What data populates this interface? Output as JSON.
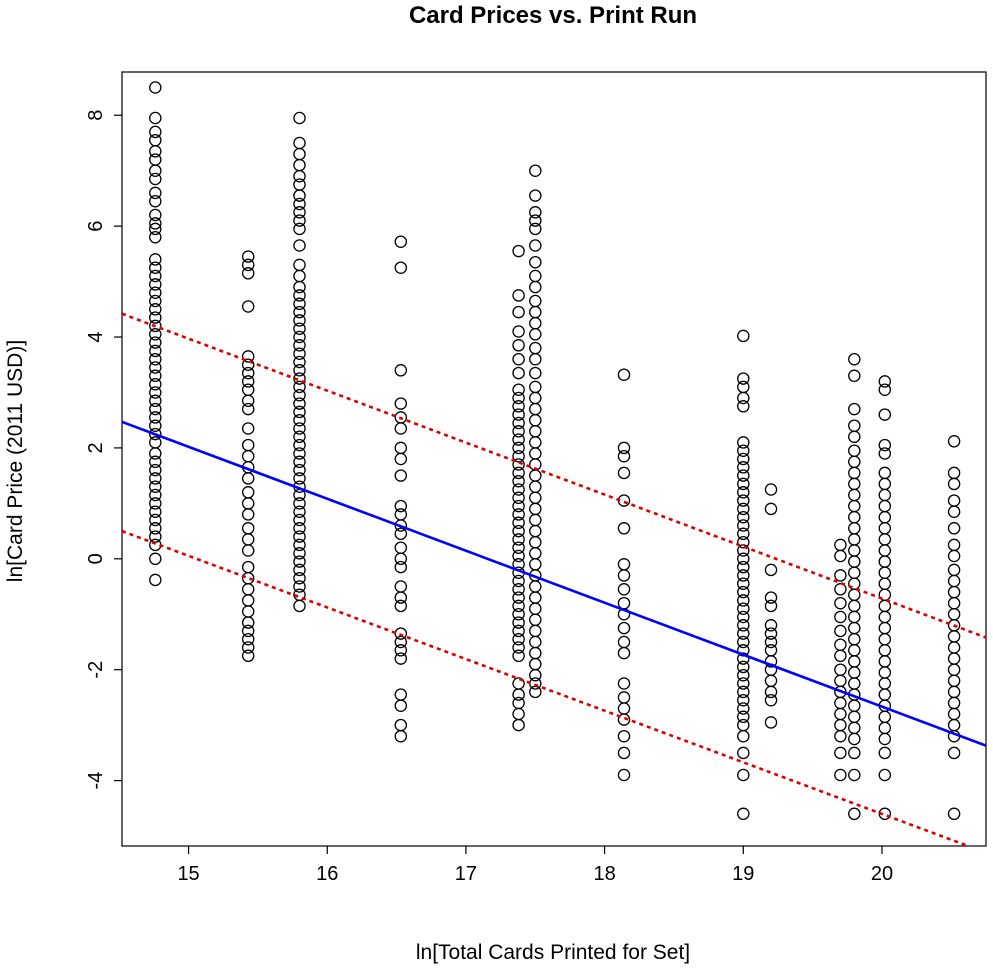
{
  "chart_data": {
    "type": "scatter",
    "title": "Card Prices vs. Print Run",
    "xlabel": "ln[Total Cards Printed for Set]",
    "ylabel": "ln[Card Price (2011 USD)]",
    "xlim": [
      14.52,
      20.75
    ],
    "ylim": [
      -5.18,
      8.78
    ],
    "xticks": [
      15,
      16,
      17,
      18,
      19,
      20
    ],
    "yticks": [
      -4,
      -2,
      0,
      2,
      4,
      6,
      8
    ],
    "grid": false,
    "legend": "none",
    "point_style": "open-circle",
    "colors": {
      "points": "#000000",
      "fit_line": "#0000ff",
      "band_lines": "#dd0000"
    },
    "lines": [
      {
        "style": "solid",
        "color": "#0000ff",
        "points": [
          [
            14.52,
            2.47
          ],
          [
            20.75,
            -3.37
          ]
        ]
      },
      {
        "style": "dotted",
        "color": "#dd0000",
        "points": [
          [
            14.52,
            4.42
          ],
          [
            20.75,
            -1.42
          ]
        ]
      },
      {
        "style": "dotted",
        "color": "#dd0000",
        "points": [
          [
            14.52,
            0.5
          ],
          [
            20.75,
            -5.3
          ]
        ]
      }
    ],
    "columns": [
      {
        "x": 14.76,
        "y": [
          8.5,
          7.95,
          7.7,
          7.55,
          7.35,
          7.2,
          7.0,
          6.85,
          6.6,
          6.45,
          6.2,
          6.05,
          5.95,
          5.8,
          5.4,
          5.25,
          5.1,
          4.95,
          4.8,
          4.65,
          4.5,
          4.35,
          4.2,
          4.05,
          3.9,
          3.75,
          3.6,
          3.45,
          3.3,
          3.15,
          3.0,
          2.85,
          2.7,
          2.55,
          2.4,
          2.25,
          2.1,
          1.9,
          1.75,
          1.6,
          1.45,
          1.3,
          1.15,
          1.0,
          0.85,
          0.7,
          0.55,
          0.4,
          0.25,
          0.0,
          -0.38
        ]
      },
      {
        "x": 15.43,
        "y": [
          5.45,
          5.3,
          5.15,
          4.55,
          3.65,
          3.5,
          3.35,
          3.2,
          3.05,
          2.85,
          2.7,
          2.35,
          2.05,
          1.85,
          1.65,
          1.45,
          1.2,
          1.0,
          0.8,
          0.55,
          0.35,
          0.15,
          -0.15,
          -0.35,
          -0.55,
          -0.75,
          -0.95,
          -1.15,
          -1.3,
          -1.45,
          -1.6,
          -1.75
        ]
      },
      {
        "x": 15.8,
        "y": [
          7.95,
          7.5,
          7.3,
          7.1,
          6.9,
          6.75,
          6.55,
          6.4,
          6.25,
          6.1,
          5.95,
          5.65,
          5.3,
          5.1,
          4.9,
          4.75,
          4.6,
          4.45,
          4.3,
          4.15,
          4.0,
          3.85,
          3.7,
          3.55,
          3.4,
          3.25,
          3.1,
          2.95,
          2.8,
          2.65,
          2.5,
          2.35,
          2.2,
          2.05,
          1.9,
          1.75,
          1.6,
          1.45,
          1.3,
          1.15,
          1.0,
          0.85,
          0.7,
          0.55,
          0.4,
          0.25,
          0.1,
          -0.05,
          -0.2,
          -0.35,
          -0.5,
          -0.65,
          -0.85
        ]
      },
      {
        "x": 16.53,
        "y": [
          5.72,
          5.25,
          3.4,
          2.8,
          2.55,
          2.35,
          2.0,
          1.8,
          1.5,
          0.95,
          0.8,
          0.6,
          0.45,
          0.2,
          0.0,
          -0.15,
          -0.5,
          -0.7,
          -0.85,
          -1.35,
          -1.5,
          -1.65,
          -1.8,
          -2.45,
          -2.65,
          -3.0,
          -3.2
        ]
      },
      {
        "x": 17.38,
        "y": [
          5.55,
          4.75,
          4.45,
          4.1,
          3.85,
          3.6,
          3.35,
          3.05,
          2.9,
          2.75,
          2.6,
          2.45,
          2.3,
          2.15,
          2.0,
          1.85,
          1.7,
          1.55,
          1.4,
          1.25,
          1.1,
          0.95,
          0.8,
          0.65,
          0.5,
          0.35,
          0.2,
          0.05,
          -0.1,
          -0.25,
          -0.4,
          -0.55,
          -0.7,
          -0.85,
          -1.0,
          -1.15,
          -1.3,
          -1.45,
          -1.6,
          -1.75,
          -2.25,
          -2.45,
          -2.6,
          -2.8,
          -3.0
        ]
      },
      {
        "x": 17.5,
        "y": [
          7.0,
          6.55,
          6.25,
          6.1,
          5.95,
          5.65,
          5.35,
          5.1,
          4.9,
          4.65,
          4.45,
          4.25,
          4.05,
          3.8,
          3.6,
          3.35,
          3.1,
          2.9,
          2.7,
          2.5,
          2.3,
          2.1,
          1.9,
          1.7,
          1.5,
          1.3,
          1.1,
          0.9,
          0.7,
          0.5,
          0.3,
          0.1,
          -0.1,
          -0.3,
          -0.5,
          -0.7,
          -0.9,
          -1.1,
          -1.3,
          -1.5,
          -1.7,
          -1.9,
          -2.1,
          -2.25,
          -2.4
        ]
      },
      {
        "x": 18.14,
        "y": [
          3.32,
          2.0,
          1.85,
          1.55,
          1.05,
          0.55,
          -0.1,
          -0.3,
          -0.55,
          -0.8,
          -1.0,
          -1.25,
          -1.5,
          -1.7,
          -2.25,
          -2.5,
          -2.7,
          -2.9,
          -3.2,
          -3.5,
          -3.9
        ]
      },
      {
        "x": 19.0,
        "y": [
          4.02,
          3.25,
          3.1,
          2.9,
          2.75,
          2.1,
          1.95,
          1.8,
          1.65,
          1.5,
          1.35,
          1.2,
          1.05,
          0.9,
          0.75,
          0.6,
          0.45,
          0.3,
          0.15,
          0.0,
          -0.15,
          -0.3,
          -0.45,
          -0.6,
          -0.75,
          -0.9,
          -1.05,
          -1.2,
          -1.35,
          -1.5,
          -1.65,
          -1.8,
          -1.95,
          -2.1,
          -2.25,
          -2.4,
          -2.55,
          -2.7,
          -2.85,
          -3.0,
          -3.2,
          -3.5,
          -3.9,
          -4.6
        ]
      },
      {
        "x": 19.2,
        "y": [
          1.25,
          0.9,
          -0.2,
          -0.7,
          -0.85,
          -1.2,
          -1.35,
          -1.5,
          -1.65,
          -1.85,
          -2.0,
          -2.2,
          -2.4,
          -2.55,
          -2.95
        ]
      },
      {
        "x": 19.7,
        "y": [
          0.25,
          0.05,
          -0.3,
          -0.55,
          -0.8,
          -1.05,
          -1.3,
          -1.55,
          -1.75,
          -2.0,
          -2.2,
          -2.4,
          -2.6,
          -2.8,
          -3.0,
          -3.2,
          -3.5,
          -3.9
        ]
      },
      {
        "x": 19.8,
        "y": [
          3.6,
          3.3,
          2.7,
          2.4,
          2.2,
          1.95,
          1.75,
          1.55,
          1.35,
          1.15,
          0.95,
          0.75,
          0.55,
          0.35,
          0.15,
          -0.05,
          -0.25,
          -0.45,
          -0.65,
          -0.85,
          -1.05,
          -1.25,
          -1.45,
          -1.65,
          -1.85,
          -2.05,
          -2.25,
          -2.45,
          -2.65,
          -2.85,
          -3.05,
          -3.25,
          -3.5,
          -3.9,
          -4.6
        ]
      },
      {
        "x": 20.02,
        "y": [
          3.2,
          3.05,
          2.6,
          2.05,
          1.9,
          1.55,
          1.35,
          1.15,
          0.95,
          0.75,
          0.55,
          0.35,
          0.15,
          -0.05,
          -0.25,
          -0.45,
          -0.65,
          -0.85,
          -1.05,
          -1.25,
          -1.45,
          -1.65,
          -1.85,
          -2.05,
          -2.25,
          -2.45,
          -2.65,
          -2.85,
          -3.05,
          -3.25,
          -3.5,
          -3.9,
          -4.6
        ]
      },
      {
        "x": 20.52,
        "y": [
          2.12,
          1.55,
          1.35,
          1.05,
          0.85,
          0.55,
          0.25,
          0.05,
          -0.2,
          -0.4,
          -0.6,
          -0.8,
          -1.0,
          -1.2,
          -1.4,
          -1.6,
          -1.8,
          -2.0,
          -2.2,
          -2.4,
          -2.6,
          -2.8,
          -3.0,
          -3.2,
          -3.5,
          -4.6
        ]
      }
    ]
  }
}
